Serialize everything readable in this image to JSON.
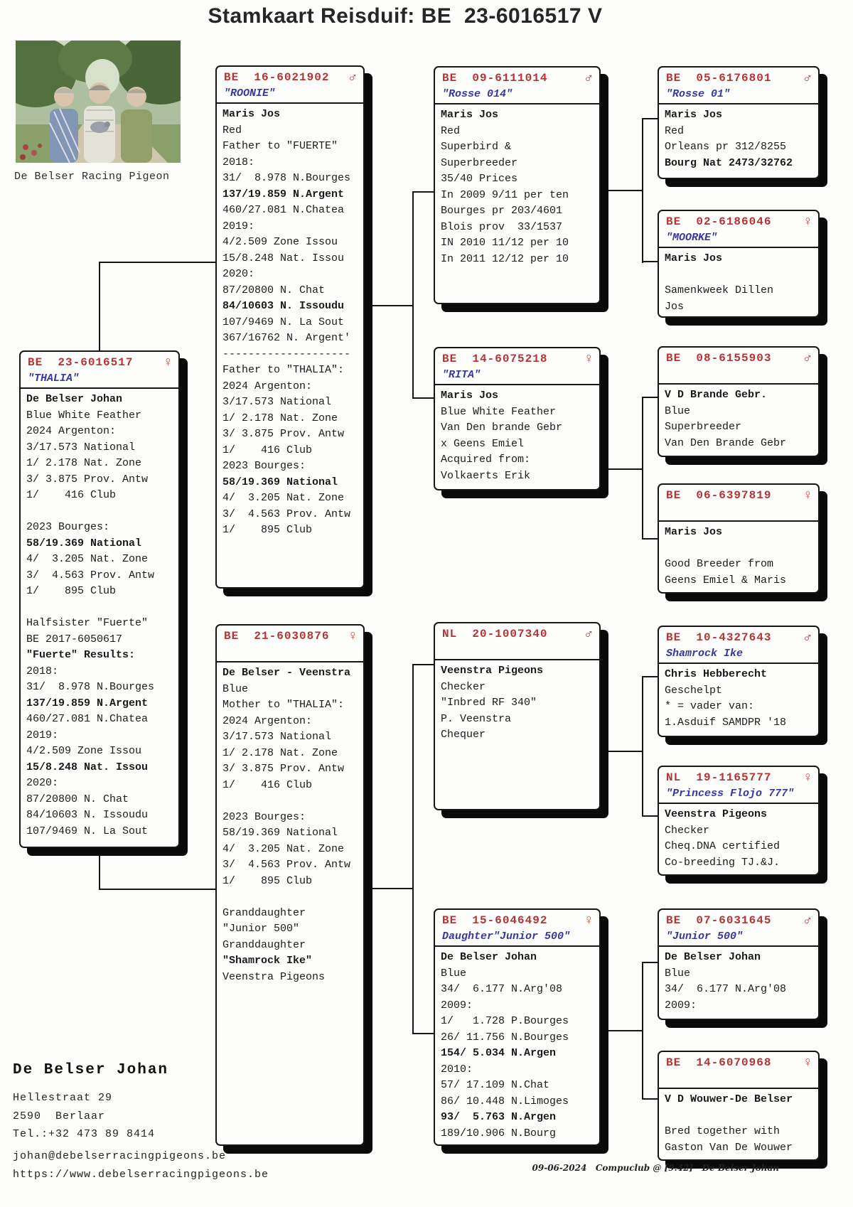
{
  "title": "Stamkaart Reisduif: BE  23-6016517 V",
  "photo_caption": "De Belser Racing Pigeon",
  "colors": {
    "ring_red": "#b43434",
    "name_blue": "#3937a0",
    "male_symbol": "#9c2f2f",
    "female_symbol": "#c43a3a",
    "line_black": "#161616"
  },
  "boxes": [
    {
      "id": "thalia",
      "ring": "BE  23-6016517",
      "sex": "female",
      "symbol": "♀",
      "name": "\"THALIA\"",
      "bold": [
        0,
        9,
        16,
        19,
        23
      ],
      "lines": [
        "De Belser Johan",
        "Blue White Feather",
        "2024 Argenton:",
        "3/17.573 National",
        "1/ 2.178 Nat. Zone",
        "3/ 3.875 Prov. Antw",
        "1/    416 Club",
        "",
        "2023 Bourges:",
        "58/19.369 National",
        "4/  3.205 Nat. Zone",
        "3/  4.563 Prov. Antw",
        "1/    895 Club",
        "",
        "Halfsister \"Fuerte\"",
        "BE 2017-6050617",
        "\"Fuerte\" Results:",
        "2018:",
        "31/  8.978 N.Bourges",
        "137/19.859 N.Argent",
        "460/27.081 N.Chatea",
        "2019:",
        "4/2.509 Zone Issou",
        "15/8.248 Nat. Issou",
        "2020:",
        "87/20800 N. Chat",
        "84/10603 N. Issoudu",
        "107/9469 N. La Sout"
      ]
    },
    {
      "id": "roonie",
      "ring": "BE  16-6021902",
      "sex": "male",
      "symbol": "♂",
      "name": "\"ROONIE\"",
      "bold": [
        0,
        5,
        12,
        23
      ],
      "lines": [
        "Maris Jos",
        "Red",
        "Father to \"FUERTE\"",
        "2018:",
        "31/  8.978 N.Bourges",
        "137/19.859 N.Argent",
        "460/27.081 N.Chatea",
        "2019:",
        "4/2.509 Zone Issou",
        "15/8.248 Nat. Issou",
        "2020:",
        "87/20800 N. Chat",
        "84/10603 N. Issoudu",
        "107/9469 N. La Sout",
        "367/16762 N. Argent'",
        "--------------------",
        "Father to \"THALIA\":",
        "2024 Argenton:",
        "3/17.573 National",
        "1/ 2.178 Nat. Zone",
        "3/ 3.875 Prov. Antw",
        "1/    416 Club",
        "2023 Bourges:",
        "58/19.369 National",
        "4/  3.205 Nat. Zone",
        "3/  4.563 Prov. Antw",
        "1/    895 Club"
      ]
    },
    {
      "id": "b6030876",
      "ring": "BE  21-6030876",
      "sex": "female",
      "symbol": "♀",
      "name": "",
      "bold": [
        0,
        18
      ],
      "lines": [
        "De Belser - Veenstra",
        "Blue",
        "Mother to \"THALIA\":",
        "2024 Argenton:",
        "3/17.573 National",
        "1/ 2.178 Nat. Zone",
        "3/ 3.875 Prov. Antw",
        "1/    416 Club",
        "",
        "2023 Bourges:",
        "58/19.369 National",
        "4/  3.205 Nat. Zone",
        "3/  4.563 Prov. Antw",
        "1/    895 Club",
        "",
        "Granddaughter",
        "\"Junior 500\"",
        "Granddaughter",
        "\"Shamrock Ike\"",
        "Veenstra Pigeons"
      ]
    },
    {
      "id": "rosse014",
      "ring": "BE  09-6111014",
      "sex": "male",
      "symbol": "♂",
      "name": "\"Rosse 014\"",
      "bold": [
        0
      ],
      "lines": [
        "Maris Jos",
        "Red",
        "Superbird &",
        "Superbreeder",
        "35/40 Prices",
        "In 2009 9/11 per ten",
        "Bourges pr 203/4601",
        "Blois prov  33/1537",
        "IN 2010 11/12 per 10",
        "In 2011 12/12 per 10"
      ]
    },
    {
      "id": "rita",
      "ring": "BE  14-6075218",
      "sex": "female",
      "symbol": "♀",
      "name": "\"RITA\"",
      "bold": [
        0
      ],
      "lines": [
        "Maris Jos",
        "Blue White Feather",
        "Van Den brande Gebr",
        "x Geens Emiel",
        "Acquired from:",
        "Volkaerts Erik"
      ]
    },
    {
      "id": "nl20",
      "ring": "NL  20-1007340",
      "sex": "male",
      "symbol": "♂",
      "name": "",
      "bold": [
        0
      ],
      "lines": [
        "Veenstra Pigeons",
        "Checker",
        "\"Inbred RF 340\"",
        "P. Veenstra",
        "Chequer"
      ]
    },
    {
      "id": "b6046492",
      "ring": "BE  15-6046492",
      "sex": "female",
      "symbol": "♀",
      "name": "Daughter\"Junior 500\"",
      "bold": [
        0,
        6,
        10
      ],
      "lines": [
        "De Belser Johan",
        "Blue",
        "34/  6.177 N.Arg'08",
        "2009:",
        "1/   1.728 P.Bourges",
        "26/ 11.756 N.Bourges",
        "154/ 5.034 N.Argen",
        "2010:",
        "57/ 17.109 N.Chat",
        "86/ 10.448 N.Limoges",
        "93/  5.763 N.Argen",
        "189/10.906 N.Bourg"
      ]
    },
    {
      "id": "rosse01",
      "ring": "BE  05-6176801",
      "sex": "male",
      "symbol": "♂",
      "name": "\"Rosse 01\"",
      "bold": [
        0,
        3
      ],
      "lines": [
        "Maris Jos",
        "Red",
        "Orleans pr 312/8255",
        "Bourg Nat 2473/32762"
      ]
    },
    {
      "id": "moorke",
      "ring": "BE  02-6186046",
      "sex": "female",
      "symbol": "♀",
      "name": "\"MOORKE\"",
      "bold": [
        0
      ],
      "lines": [
        "Maris Jos",
        "",
        "Samenkweek Dillen",
        "Jos"
      ]
    },
    {
      "id": "b6155903",
      "ring": "BE  08-6155903",
      "sex": "male",
      "symbol": "♂",
      "name": "",
      "bold": [
        0
      ],
      "lines": [
        "V D Brande Gebr.",
        "Blue",
        "Superbreeder",
        "Van Den Brande Gebr"
      ]
    },
    {
      "id": "b6397819",
      "ring": "BE  06-6397819",
      "sex": "female",
      "symbol": "♀",
      "name": "",
      "bold": [
        0
      ],
      "lines": [
        "Maris Jos",
        "",
        "Good Breeder from",
        "Geens Emiel & Maris"
      ]
    },
    {
      "id": "shamrock",
      "ring": "BE  10-4327643",
      "sex": "male",
      "symbol": "♂",
      "name": "Shamrock Ike",
      "bold": [
        0
      ],
      "lines": [
        "Chris Hebberecht",
        "Geschelpt",
        "* = vader van:",
        "1.Asduif SAMDPR '18"
      ]
    },
    {
      "id": "princess",
      "ring": "NL  19-1165777",
      "sex": "female",
      "symbol": "♀",
      "name": "\"Princess Flojo 777\"",
      "bold": [
        0
      ],
      "lines": [
        "Veenstra Pigeons",
        "Checker",
        "Cheq.DNA certified",
        "Co-breeding TJ.&J."
      ]
    },
    {
      "id": "junior500",
      "ring": "BE  07-6031645",
      "sex": "male",
      "symbol": "♂",
      "name": "\"Junior 500\"",
      "bold": [
        0
      ],
      "lines": [
        "De Belser Johan",
        "Blue",
        "34/  6.177 N.Arg'08",
        "2009:"
      ]
    },
    {
      "id": "b6070968",
      "ring": "BE  14-6070968",
      "sex": "female",
      "symbol": "♀",
      "name": "",
      "bold": [
        0
      ],
      "lines": [
        "V D Wouwer-De Belser",
        "",
        "Bred together with",
        "Gaston Van De Wouwer"
      ]
    }
  ],
  "contact": {
    "name": "De Belser Johan",
    "address1": "Hellestraat 29",
    "address2": "2590  Berlaar",
    "phone": "Tel.:+32 473 89 8414",
    "email": "johan@debelserracingpigeons.be",
    "website": "https://www.debelserracingpigeons.be"
  },
  "print_info": "09-06-2024   Compuclub @ [9.42]   De Belser Johan"
}
